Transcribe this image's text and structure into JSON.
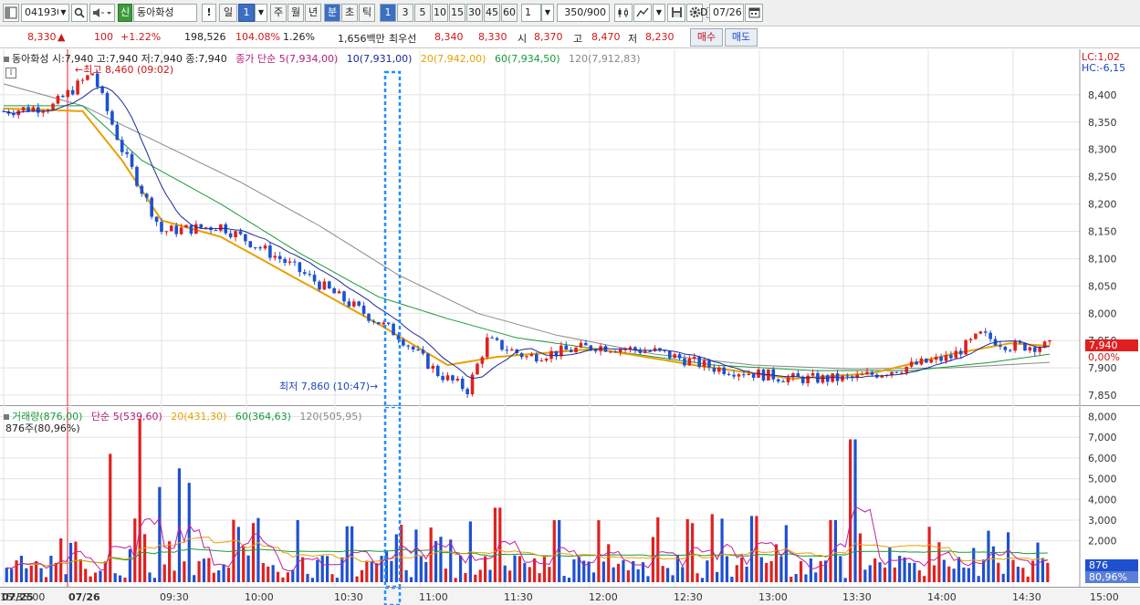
{
  "toolbar": {
    "code": "041930",
    "stock_badge": "신",
    "stock_name": "동아화성",
    "alert_label": "!",
    "day_label": "일",
    "period_select": "1",
    "periods": [
      "주",
      "월",
      "년",
      "분",
      "초",
      "틱"
    ],
    "intervals": [
      "1",
      "3",
      "5",
      "10",
      "15",
      "30",
      "45",
      "60"
    ],
    "interval_value": "1",
    "count": "350/900",
    "checkbox_label": "D",
    "date": "07/26"
  },
  "quote": {
    "price": "8,330",
    "arrow": "▲",
    "change": "100",
    "change_pct": "+1.22%",
    "volume": "198,526",
    "vol_ratio": "104.08%",
    "turnover": "1.26%",
    "amount": "1,656백만",
    "best_label": "최우선",
    "best_ask": "8,340",
    "best_bid": "8,330",
    "open_label": "시",
    "open": "8,370",
    "high_label": "고",
    "high": "8,470",
    "low_label": "저",
    "low": "8,230",
    "buy_label": "매수",
    "sell_label": "매도"
  },
  "price_panel": {
    "title": "동아화성 시:7,940 고:7,940 저:7,940 종:7,940",
    "ma_label": "종가 단순",
    "ma5": "5(7,934,00)",
    "ma10": "10(7,931,00)",
    "ma20": "20(7,942,00)",
    "ma60": "60(7,934,50)",
    "ma120": "120(7,912,83)",
    "lc": "LC:1,02",
    "hc": "HC:-6,15",
    "high_note": "최고 8,460 (09:02)",
    "low_note": "최저 7,860 (10:47)",
    "current_tag": "7,940",
    "pct_tag": "0,00%",
    "y_ticks": [
      "8,400",
      "8,350",
      "8,300",
      "8,250",
      "8,200",
      "8,150",
      "8,100",
      "8,050",
      "8,000",
      "7,950",
      "7,900",
      "7,850"
    ]
  },
  "volume_panel": {
    "title_label": "거래량(876,00)",
    "ma_label": "단순",
    "ma5": "5(539,60)",
    "ma20": "20(431,30)",
    "ma60": "60(364,63)",
    "ma120": "120(505,95)",
    "sub": "876주(80,96%)",
    "current_tag": "876",
    "pct_tag": "80,96%",
    "y_ticks": [
      "8,000",
      "7,000",
      "6,000",
      "5,000",
      "4,000",
      "3,000",
      "2,000"
    ]
  },
  "time_axis": [
    "07/25",
    "07/26",
    "09:30",
    "10:00",
    "10:30",
    "11:00",
    "11:30",
    "12:00",
    "12:30",
    "13:00",
    "13:30",
    "14:00",
    "14:30",
    "15:00",
    "15:35:00"
  ],
  "colors": {
    "up": "#e02020",
    "down": "#1e50d0",
    "ma5": "#1a2a9a",
    "ma20": "#e8a000",
    "ma60": "#1a9a3a",
    "ma120": "#888888",
    "highlight": "#1e90ff"
  },
  "chart_data": {
    "type": "candlestick",
    "x_range": [
      "07/25",
      "15:35"
    ],
    "price_ylim": [
      7830,
      8470
    ],
    "price_series": {
      "close_trend": [
        [
          0,
          8370
        ],
        [
          5,
          8380
        ],
        [
          9,
          8440
        ],
        [
          12,
          8300
        ],
        [
          16,
          8150
        ],
        [
          22,
          8160
        ],
        [
          28,
          8100
        ],
        [
          34,
          8030
        ],
        [
          40,
          7960
        ],
        [
          44,
          7890
        ],
        [
          47,
          7860
        ],
        [
          49,
          7950
        ],
        [
          53,
          7920
        ],
        [
          60,
          7940
        ],
        [
          66,
          7930
        ],
        [
          72,
          7900
        ],
        [
          80,
          7880
        ],
        [
          86,
          7880
        ],
        [
          91,
          7900
        ],
        [
          96,
          7920
        ],
        [
          99,
          7960
        ],
        [
          102,
          7940
        ],
        [
          106,
          7940
        ]
      ],
      "ma20_trend": [
        [
          0,
          8375
        ],
        [
          8,
          8370
        ],
        [
          12,
          8280
        ],
        [
          16,
          8170
        ],
        [
          22,
          8140
        ],
        [
          30,
          8060
        ],
        [
          38,
          7980
        ],
        [
          45,
          7905
        ],
        [
          50,
          7920
        ],
        [
          60,
          7935
        ],
        [
          70,
          7905
        ],
        [
          80,
          7880
        ],
        [
          88,
          7890
        ],
        [
          96,
          7925
        ],
        [
          102,
          7945
        ],
        [
          106,
          7940
        ]
      ],
      "ma60_trend": [
        [
          0,
          8380
        ],
        [
          8,
          8380
        ],
        [
          14,
          8280
        ],
        [
          22,
          8200
        ],
        [
          30,
          8110
        ],
        [
          38,
          8030
        ],
        [
          45,
          7990
        ],
        [
          52,
          7955
        ],
        [
          62,
          7930
        ],
        [
          72,
          7905
        ],
        [
          82,
          7895
        ],
        [
          92,
          7895
        ],
        [
          100,
          7910
        ],
        [
          106,
          7925
        ]
      ],
      "ma120_trend": [
        [
          0,
          8420
        ],
        [
          8,
          8380
        ],
        [
          16,
          8310
        ],
        [
          24,
          8240
        ],
        [
          32,
          8160
        ],
        [
          40,
          8070
        ],
        [
          48,
          8000
        ],
        [
          56,
          7960
        ],
        [
          66,
          7925
        ],
        [
          76,
          7905
        ],
        [
          86,
          7898
        ],
        [
          96,
          7900
        ],
        [
          106,
          7910
        ]
      ]
    },
    "volume_ylim": [
      0,
      8200
    ]
  }
}
